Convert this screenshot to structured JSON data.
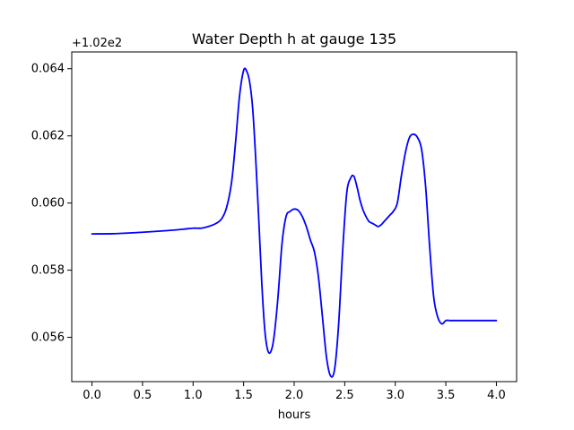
{
  "chart_data": {
    "type": "line",
    "title": "Water Depth h at gauge 135",
    "xlabel": "hours",
    "ylabel": "",
    "offset_label": "+1.02e2",
    "xlim": [
      -0.2,
      4.2
    ],
    "ylim": [
      0.05468,
      0.0645
    ],
    "xticks": [
      0.0,
      0.5,
      1.0,
      1.5,
      2.0,
      2.5,
      3.0,
      3.5,
      4.0
    ],
    "xtick_labels": [
      "0.0",
      "0.5",
      "1.0",
      "1.5",
      "2.0",
      "2.5",
      "3.0",
      "3.5",
      "4.0"
    ],
    "yticks": [
      0.056,
      0.058,
      0.06,
      0.062,
      0.064
    ],
    "ytick_labels": [
      "0.056",
      "0.058",
      "0.060",
      "0.062",
      "0.064"
    ],
    "grid": false,
    "series": [
      {
        "color": "#0000ff",
        "x": [
          0.0,
          0.25,
          0.5,
          0.75,
          0.9,
          1.0,
          1.08,
          1.15,
          1.22,
          1.28,
          1.33,
          1.38,
          1.42,
          1.46,
          1.5,
          1.53,
          1.56,
          1.59,
          1.62,
          1.65,
          1.68,
          1.71,
          1.74,
          1.77,
          1.8,
          1.84,
          1.88,
          1.92,
          1.96,
          2.0,
          2.04,
          2.08,
          2.12,
          2.16,
          2.2,
          2.24,
          2.28,
          2.32,
          2.36,
          2.4,
          2.44,
          2.48,
          2.52,
          2.56,
          2.59,
          2.62,
          2.65,
          2.68,
          2.71,
          2.74,
          2.77,
          2.8,
          2.83,
          2.86,
          2.89,
          2.92,
          2.95,
          2.98,
          3.02,
          3.06,
          3.1,
          3.14,
          3.18,
          3.22,
          3.26,
          3.3,
          3.34,
          3.38,
          3.42,
          3.46,
          3.5,
          3.54,
          3.58,
          3.61,
          3.64,
          3.67,
          3.7,
          3.73,
          3.76,
          3.79,
          3.82,
          3.85,
          3.88,
          3.91,
          3.94,
          3.97,
          4.0
        ],
        "y": [
          0.05908,
          0.05909,
          0.05913,
          0.05918,
          0.05922,
          0.05925,
          0.05925,
          0.0593,
          0.05938,
          0.05952,
          0.05985,
          0.0606,
          0.0618,
          0.0632,
          0.06395,
          0.06393,
          0.0636,
          0.0628,
          0.0613,
          0.0595,
          0.0576,
          0.0562,
          0.0556,
          0.05558,
          0.056,
          0.0572,
          0.0588,
          0.0596,
          0.05975,
          0.05982,
          0.05978,
          0.0596,
          0.0593,
          0.0589,
          0.05855,
          0.0578,
          0.0566,
          0.0554,
          0.05485,
          0.05505,
          0.0564,
          0.0586,
          0.0603,
          0.06075,
          0.0608,
          0.0605,
          0.0601,
          0.0598,
          0.0596,
          0.05945,
          0.0594,
          0.05935,
          0.0593,
          0.05935,
          0.05945,
          0.05955,
          0.05965,
          0.05975,
          0.06,
          0.0608,
          0.0615,
          0.06195,
          0.06205,
          0.06195,
          0.0616,
          0.0605,
          0.0587,
          0.0572,
          0.0566,
          0.0564,
          0.0565,
          0.0565,
          0.0565,
          0.0565,
          0.0565,
          0.0565,
          0.0565,
          0.0565,
          0.0565,
          0.0565,
          0.0565,
          0.0565,
          0.0565,
          0.0565,
          0.0565,
          0.0565,
          0.0565
        ]
      }
    ]
  }
}
